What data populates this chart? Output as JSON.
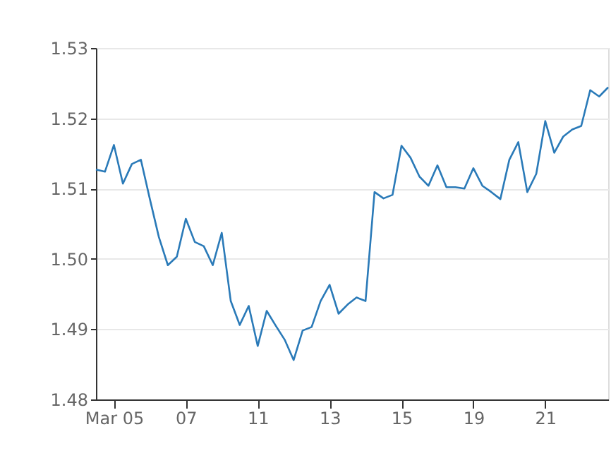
{
  "chart_data": {
    "type": "line",
    "color": "#2a7ab8",
    "categories": [
      null,
      null,
      "Mar 05",
      null,
      null,
      null,
      null,
      null,
      null,
      null,
      "07",
      null,
      null,
      null,
      null,
      null,
      null,
      null,
      "11",
      null,
      null,
      null,
      null,
      null,
      null,
      null,
      "13",
      null,
      null,
      null,
      null,
      null,
      null,
      null,
      "15",
      null,
      null,
      null,
      null,
      null,
      null,
      null,
      "19",
      null,
      null,
      null,
      null,
      null,
      null,
      null,
      "21",
      null,
      null,
      null,
      null,
      null,
      null,
      null
    ],
    "values": [
      1.5127,
      1.5124,
      1.5162,
      1.5107,
      1.5135,
      1.5141,
      1.5085,
      1.5031,
      1.4991,
      1.5003,
      1.5057,
      1.5024,
      1.5018,
      1.4991,
      1.5037,
      1.494,
      1.4906,
      1.4933,
      1.4876,
      1.4926,
      1.4905,
      1.4885,
      1.4856,
      1.4898,
      1.4903,
      1.494,
      1.4963,
      1.4922,
      1.4935,
      1.4945,
      1.494,
      1.5095,
      1.5086,
      1.5091,
      1.5161,
      1.5144,
      1.5117,
      1.5104,
      1.5133,
      1.5102,
      1.5102,
      1.51,
      1.5129,
      1.5104,
      1.5095,
      1.5085,
      1.5141,
      1.5166,
      1.5095,
      1.5121,
      1.5196,
      1.5151,
      1.5174,
      1.5184,
      1.5189,
      1.524,
      1.5231,
      1.5244
    ],
    "ylim": [
      1.48,
      1.53
    ],
    "yticks": [
      1.48,
      1.49,
      {
        "value": 1.5,
        "label": "1.50"
      },
      1.51,
      1.52,
      1.53
    ],
    "grid": "y",
    "line_style": "solid",
    "marker": "none"
  }
}
